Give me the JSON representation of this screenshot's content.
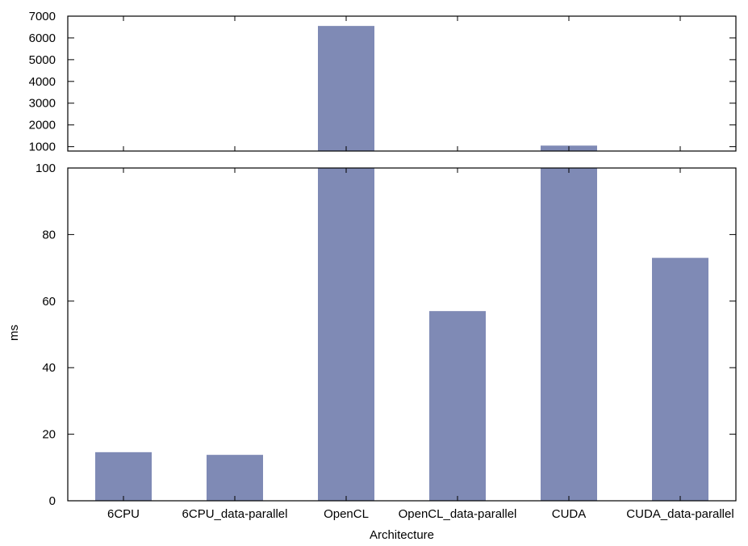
{
  "chart_data": {
    "type": "bar",
    "layout": "broken-axis",
    "title": "",
    "xlabel": "Architecture",
    "ylabel": "ms",
    "categories": [
      "6CPU",
      "6CPU_data-parallel",
      "OpenCL",
      "OpenCL_data-parallel",
      "CUDA",
      "CUDA_data-parallel"
    ],
    "values": [
      14.6,
      13.8,
      6550,
      57,
      1050,
      73
    ],
    "color": "#7f8ab5",
    "grid": false,
    "upper_panel": {
      "ylim": [
        800,
        7000
      ],
      "yticks": [
        1000,
        2000,
        3000,
        4000,
        5000,
        6000,
        7000
      ],
      "ytick_labels": [
        "1000",
        "2000",
        "3000",
        "4000",
        "5000",
        "6000",
        "7000"
      ]
    },
    "lower_panel": {
      "ylim": [
        0,
        100
      ],
      "yticks": [
        0,
        20,
        40,
        60,
        80,
        100
      ],
      "ytick_labels": [
        "0",
        "20",
        "40",
        "60",
        "80",
        "100"
      ]
    }
  }
}
